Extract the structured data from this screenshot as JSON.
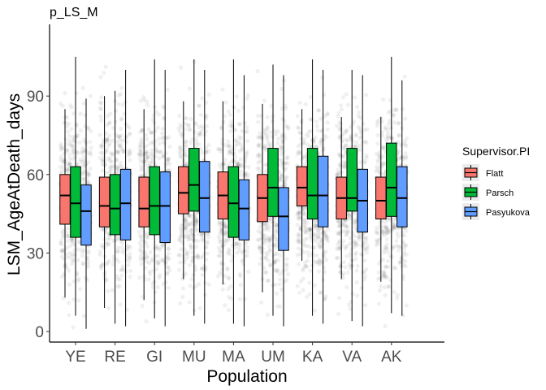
{
  "chart_data": {
    "type": "box",
    "title": "p_LS_M",
    "xlabel": "Population",
    "ylabel": "LSM_AgeAtDeath_days",
    "ylim": [
      -2,
      117
    ],
    "yticks": [
      0,
      30,
      60,
      90
    ],
    "categories": [
      "YE",
      "RE",
      "GI",
      "MU",
      "MA",
      "UM",
      "KA",
      "VA",
      "AK"
    ],
    "grid": false,
    "legend": {
      "title": "Supervisor.PI",
      "position": "right"
    },
    "series": [
      {
        "name": "Flatt",
        "color": "#f8766d",
        "boxes": [
          {
            "q1": 41,
            "median": 52,
            "q3": 60,
            "min": 13,
            "max": 85
          },
          {
            "q1": 40,
            "median": 48,
            "q3": 59,
            "min": 9,
            "max": 90
          },
          {
            "q1": 40,
            "median": 47,
            "q3": 59,
            "min": 12,
            "max": 85
          },
          {
            "q1": 45,
            "median": 53,
            "q3": 63,
            "min": 20,
            "max": 88
          },
          {
            "q1": 43,
            "median": 52,
            "q3": 61,
            "min": 18,
            "max": 88
          },
          {
            "q1": 42,
            "median": 51,
            "q3": 60,
            "min": 15,
            "max": 87
          },
          {
            "q1": 48,
            "median": 55,
            "q3": 63,
            "min": 27,
            "max": 85
          },
          {
            "q1": 43,
            "median": 51,
            "q3": 59,
            "min": 20,
            "max": 82
          },
          {
            "q1": 43,
            "median": 50,
            "q3": 59,
            "min": 19,
            "max": 82
          }
        ]
      },
      {
        "name": "Parsch",
        "color": "#00ba38",
        "boxes": [
          {
            "q1": 36,
            "median": 49,
            "q3": 63,
            "min": 6,
            "max": 105
          },
          {
            "q1": 37,
            "median": 47,
            "q3": 60,
            "min": 3,
            "max": 92
          },
          {
            "q1": 37,
            "median": 48,
            "q3": 63,
            "min": 5,
            "max": 104
          },
          {
            "q1": 46,
            "median": 56,
            "q3": 70,
            "min": 6,
            "max": 104
          },
          {
            "q1": 36,
            "median": 49,
            "q3": 63,
            "min": 3,
            "max": 104
          },
          {
            "q1": 44,
            "median": 55,
            "q3": 70,
            "min": 6,
            "max": 102
          },
          {
            "q1": 43,
            "median": 52,
            "q3": 70,
            "min": 6,
            "max": 104
          },
          {
            "q1": 46,
            "median": 51,
            "q3": 70,
            "min": 4,
            "max": 100
          },
          {
            "q1": 44,
            "median": 55,
            "q3": 72,
            "min": 7,
            "max": 105
          }
        ]
      },
      {
        "name": "Pasyukova",
        "color": "#619cff",
        "boxes": [
          {
            "q1": 33,
            "median": 46,
            "q3": 56,
            "min": 1,
            "max": 89
          },
          {
            "q1": 35,
            "median": 49,
            "q3": 62,
            "min": 2,
            "max": 100
          },
          {
            "q1": 34,
            "median": 48,
            "q3": 61,
            "min": 2,
            "max": 100
          },
          {
            "q1": 38,
            "median": 51,
            "q3": 65,
            "min": 3,
            "max": 100
          },
          {
            "q1": 35,
            "median": 47,
            "q3": 58,
            "min": 2,
            "max": 98
          },
          {
            "q1": 31,
            "median": 44,
            "q3": 55,
            "min": 2,
            "max": 98
          },
          {
            "q1": 40,
            "median": 52,
            "q3": 67,
            "min": 3,
            "max": 100
          },
          {
            "q1": 38,
            "median": 50,
            "q3": 62,
            "min": 2,
            "max": 98
          },
          {
            "q1": 40,
            "median": 51,
            "q3": 63,
            "min": 6,
            "max": 96
          }
        ]
      }
    ],
    "jitter_points": "semi-transparent grey dots over every population, mostly between 0 and 105"
  }
}
